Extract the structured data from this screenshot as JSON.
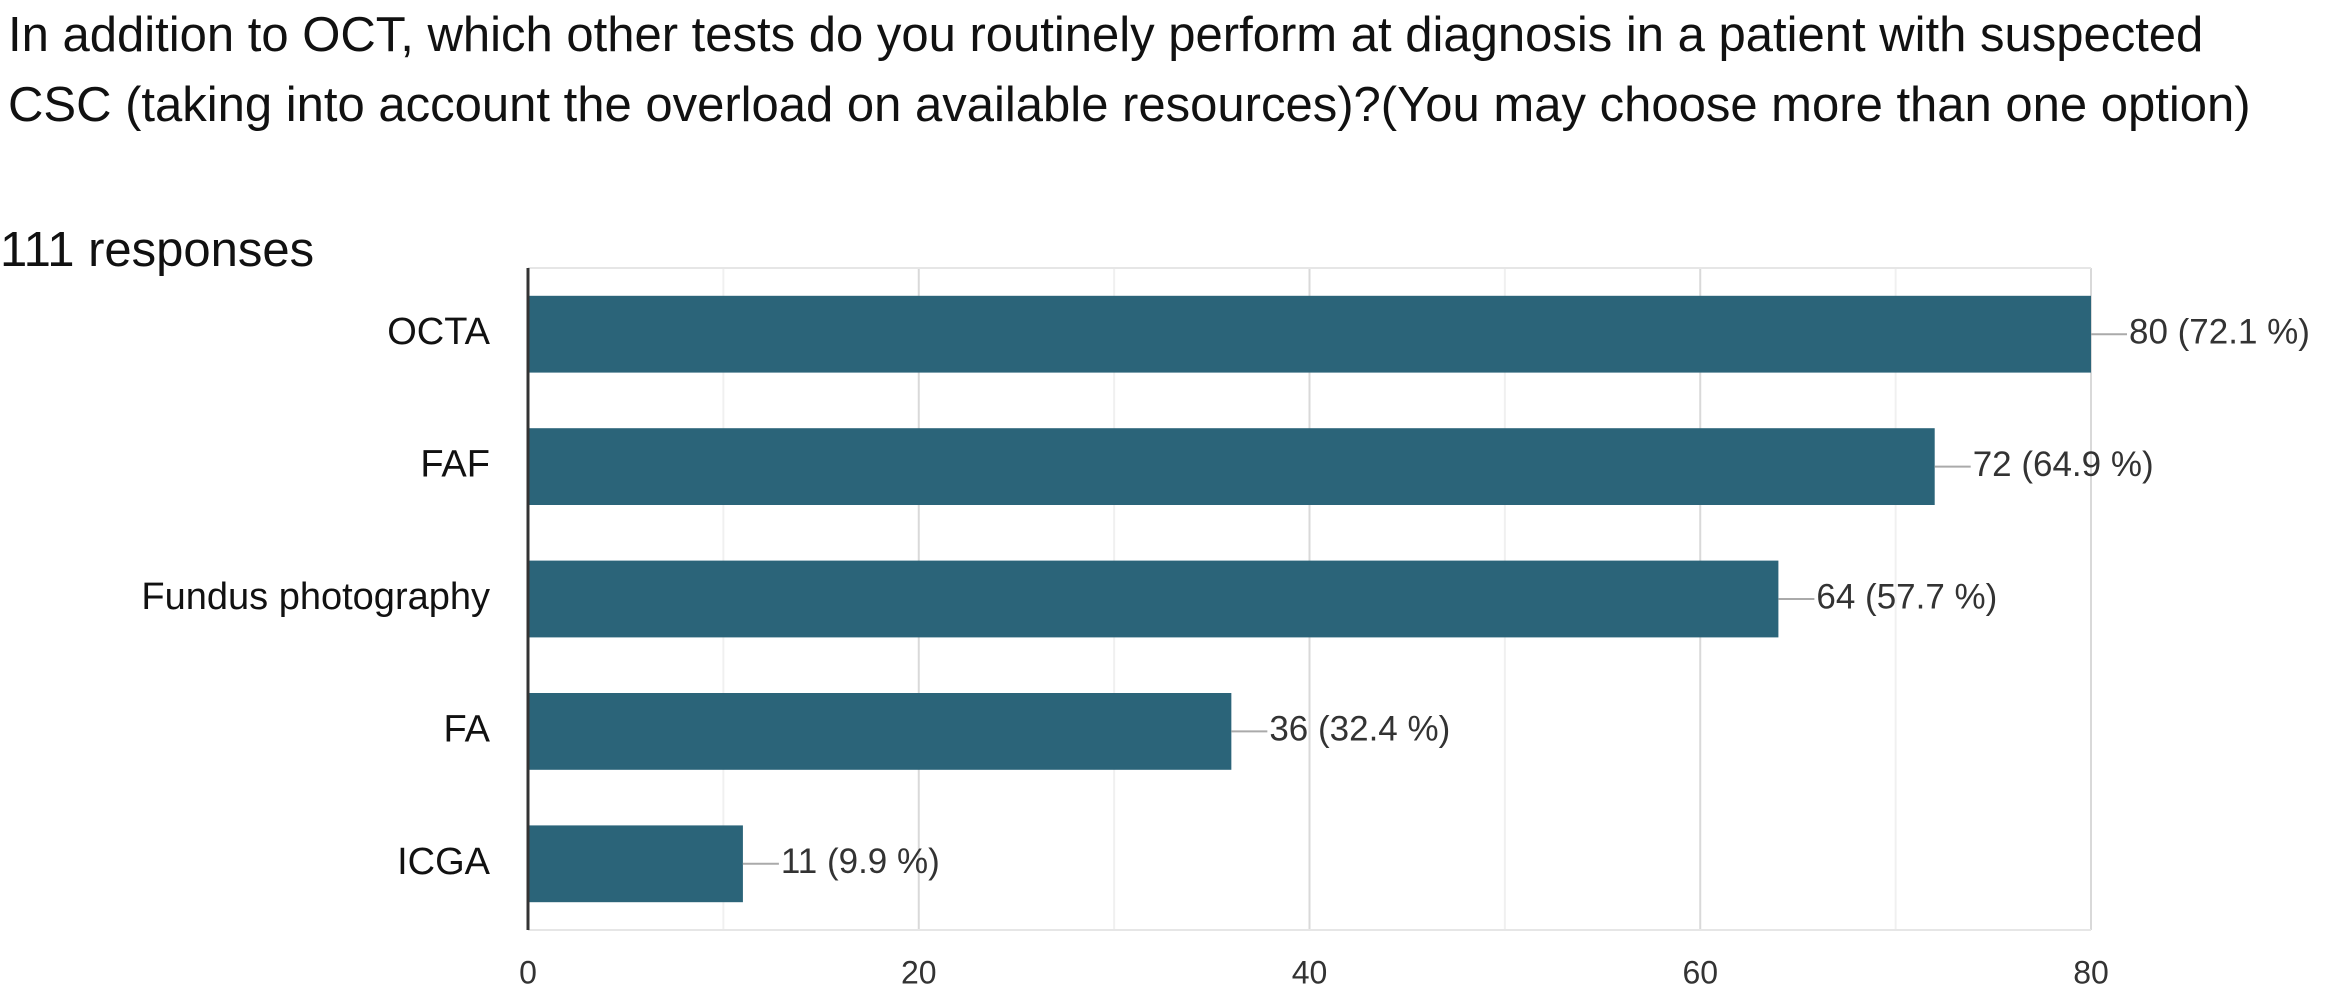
{
  "chart_data": {
    "type": "bar",
    "orientation": "horizontal",
    "title": "In addition to OCT, which other tests do you routinely perform at diagnosis in a patient with suspected CSC (taking into account the overload on available resources)?(You may choose more than one option)",
    "subtitle": "111 responses",
    "categories": [
      "OCTA",
      "FAF",
      "Fundus photography",
      "FA",
      "ICGA"
    ],
    "values": [
      80,
      72,
      64,
      36,
      11
    ],
    "value_labels": [
      "80 (72.1 %)",
      "72 (64.9 %)",
      "64 (57.7 %)",
      "36 (32.4 %)",
      "11 (9.9 %)"
    ],
    "color": "#2b6479",
    "xlim": [
      0,
      80
    ],
    "xticks": [
      0,
      20,
      40,
      60,
      80
    ],
    "xminorticks": [
      10,
      30,
      50,
      70
    ],
    "grid": true
  }
}
